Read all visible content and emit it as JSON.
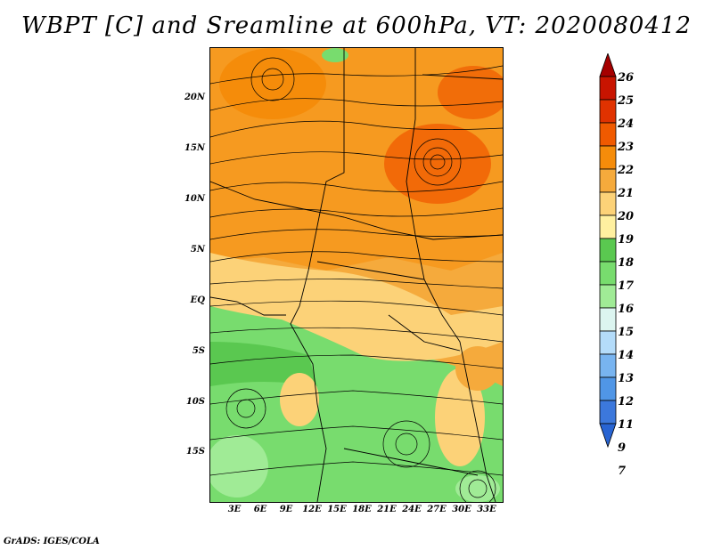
{
  "title": "WBPT [C] and Sreamline at 600hPa, VT: 2020080412",
  "credit": "GrADS: IGES/COLA",
  "lat_labels": [
    "20N",
    "15N",
    "10N",
    "5N",
    "EQ",
    "5S",
    "10S",
    "15S"
  ],
  "lon_labels": [
    "3E",
    "6E",
    "9E",
    "12E",
    "15E",
    "18E",
    "21E",
    "24E",
    "27E",
    "30E",
    "33E"
  ],
  "colorbar": {
    "levels": [
      "26",
      "25",
      "24",
      "23",
      "22",
      "21",
      "20",
      "19",
      "18",
      "17",
      "16",
      "15",
      "14",
      "13",
      "12",
      "11",
      "9",
      "7"
    ],
    "colors": [
      "#a50000",
      "#c81400",
      "#e03200",
      "#f05a00",
      "#f58c0a",
      "#f5aa3c",
      "#fcd278",
      "#fff0a0",
      "#5ac850",
      "#78dc6e",
      "#a0eb96",
      "#dcf5f0",
      "#b4dcfa",
      "#78b4f0",
      "#5096e6",
      "#3c78dc",
      "#2864d2"
    ]
  }
}
